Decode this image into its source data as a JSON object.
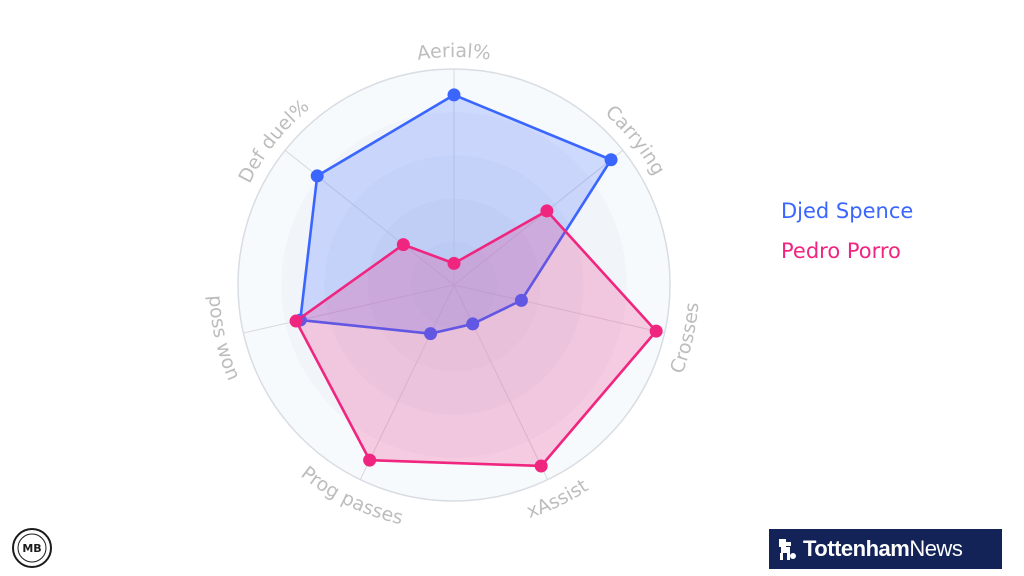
{
  "chart_data": {
    "type": "radar",
    "axes": [
      "Aerial%",
      "Carrying",
      "Crosses",
      "xAssist",
      "Prog passes",
      "poss won",
      "Def duel%"
    ],
    "rlim": [
      0,
      100
    ],
    "grid": true,
    "legend_position": "right",
    "series": [
      {
        "name": "Djed Spence",
        "color": "#3a66ff",
        "values": [
          88,
          93,
          32,
          20,
          25,
          73,
          81
        ]
      },
      {
        "name": "Pedro Porro",
        "color": "#f0257f",
        "values": [
          10,
          55,
          96,
          93,
          90,
          75,
          30
        ]
      }
    ]
  },
  "branding": {
    "publisher_name_bold": "Tottenham",
    "publisher_name_light": "News",
    "corner_logo_text": "MB"
  }
}
